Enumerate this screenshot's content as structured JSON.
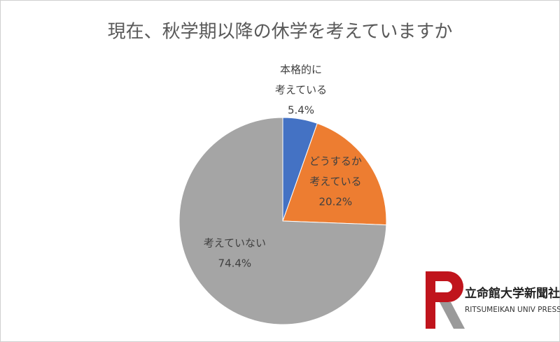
{
  "chart_data": {
    "type": "pie",
    "title": "現在、秋学期以降の休学を考えていますか",
    "categories": [
      [
        "本格的に",
        "考えている"
      ],
      [
        "どうするか",
        "考えている"
      ],
      [
        "考えていない"
      ]
    ],
    "values": [
      5.4,
      20.2,
      74.4
    ],
    "value_labels": [
      "5.4%",
      "20.2%",
      "74.4%"
    ],
    "colors": [
      "#4472c4",
      "#ed7d31",
      "#a5a5a5"
    ]
  },
  "logo": {
    "name": "立命館大学新聞社",
    "subtitle": "RITSUMEIKAN UNIV PRESS"
  }
}
